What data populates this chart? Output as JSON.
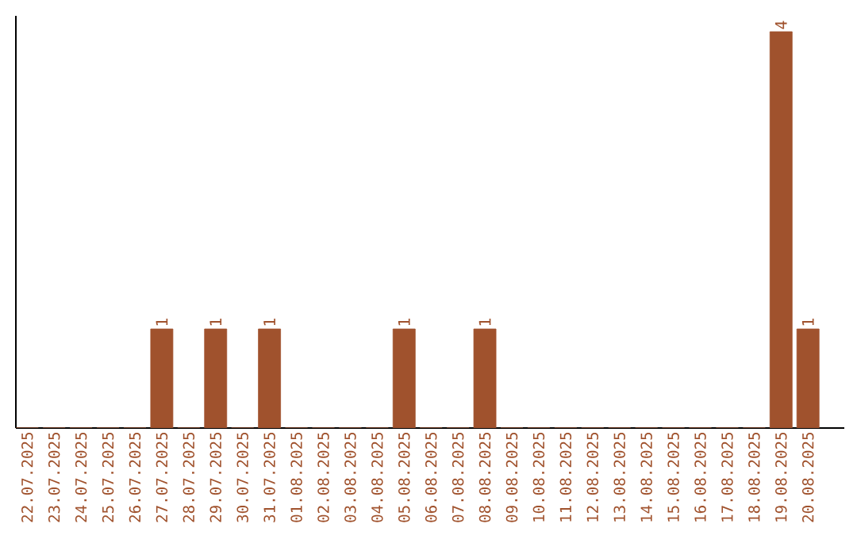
{
  "chart_data": {
    "type": "bar",
    "categories": [
      "22.07.2025",
      "23.07.2025",
      "24.07.2025",
      "25.07.2025",
      "26.07.2025",
      "27.07.2025",
      "28.07.2025",
      "29.07.2025",
      "30.07.2025",
      "31.07.2025",
      "01.08.2025",
      "02.08.2025",
      "03.08.2025",
      "04.08.2025",
      "05.08.2025",
      "06.08.2025",
      "07.08.2025",
      "08.08.2025",
      "09.08.2025",
      "10.08.2025",
      "11.08.2025",
      "12.08.2025",
      "13.08.2025",
      "14.08.2025",
      "15.08.2025",
      "16.08.2025",
      "17.08.2025",
      "18.08.2025",
      "19.08.2025",
      "20.08.2025"
    ],
    "values": [
      0,
      0,
      0,
      0,
      0,
      1,
      0,
      1,
      0,
      1,
      0,
      0,
      0,
      0,
      1,
      0,
      0,
      1,
      0,
      0,
      0,
      0,
      0,
      0,
      0,
      0,
      0,
      0,
      4,
      1
    ],
    "value_labels": [
      null,
      null,
      null,
      null,
      null,
      "1",
      null,
      "1",
      null,
      "1",
      null,
      null,
      null,
      null,
      "1",
      null,
      null,
      "1",
      null,
      null,
      null,
      null,
      null,
      null,
      null,
      null,
      null,
      null,
      "4",
      "1"
    ],
    "color": "#a0522d",
    "ylim": [
      0,
      4.16
    ],
    "tick_labels": "x",
    "grid": false
  }
}
